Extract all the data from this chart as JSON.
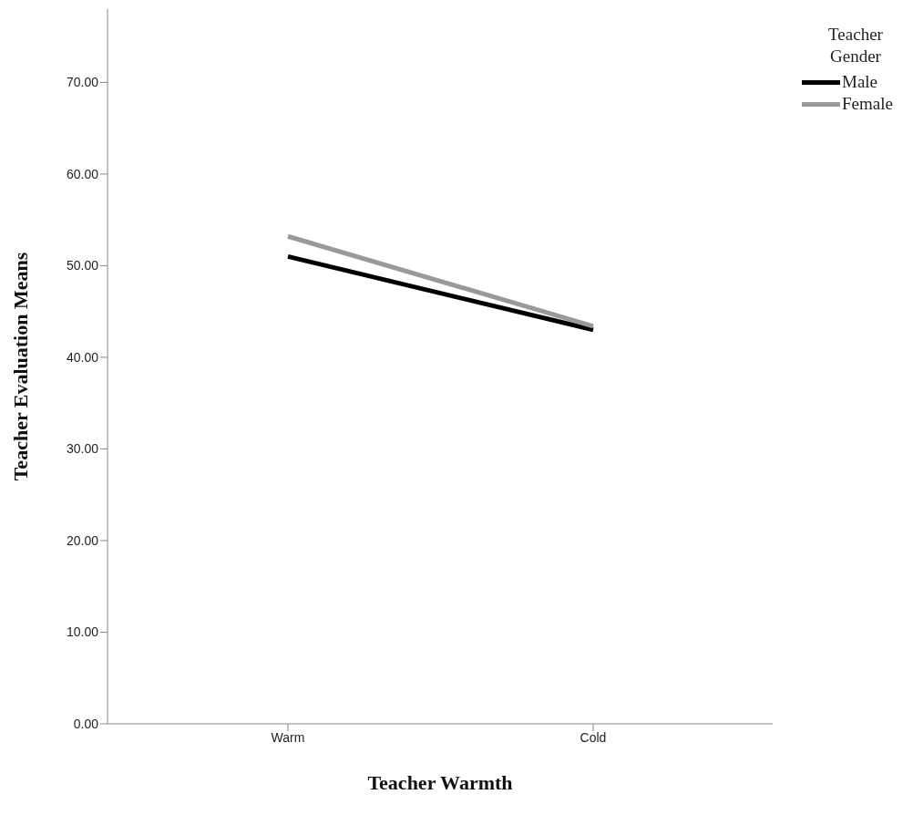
{
  "chart_data": {
    "type": "line",
    "xlabel": "Teacher Warmth",
    "ylabel": "Teacher Evaluation Means",
    "legend_title": "Teacher Gender",
    "categories": [
      "Warm",
      "Cold"
    ],
    "series": [
      {
        "name": "Male",
        "color": "#000000",
        "values": [
          51.0,
          43.0
        ]
      },
      {
        "name": "Female",
        "color": "#999999",
        "values": [
          53.2,
          43.4
        ]
      }
    ],
    "ylim": [
      0,
      78
    ],
    "yticks": [
      {
        "value": 0,
        "label": "0.00"
      },
      {
        "value": 10,
        "label": "10.00"
      },
      {
        "value": 20,
        "label": "20.00"
      },
      {
        "value": 30,
        "label": "30.00"
      },
      {
        "value": 40,
        "label": "40.00"
      },
      {
        "value": 50,
        "label": "50.00"
      },
      {
        "value": 60,
        "label": "60.00"
      },
      {
        "value": 70,
        "label": "70.00"
      }
    ],
    "grid": false,
    "legend": "top right",
    "marker": "none",
    "line_style": "solid"
  }
}
